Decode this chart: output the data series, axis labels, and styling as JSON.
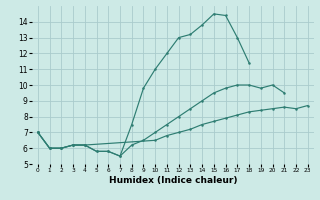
{
  "xlabel": "Humidex (Indice chaleur)",
  "bg_color": "#cdeae6",
  "grid_color": "#aacccc",
  "line_color": "#2e7d72",
  "xlim": [
    -0.5,
    23.5
  ],
  "ylim": [
    5,
    15
  ],
  "yticks": [
    5,
    6,
    7,
    8,
    9,
    10,
    11,
    12,
    13,
    14
  ],
  "xticks": [
    0,
    1,
    2,
    3,
    4,
    5,
    6,
    7,
    8,
    9,
    10,
    11,
    12,
    13,
    14,
    15,
    16,
    17,
    18,
    19,
    20,
    21,
    22,
    23
  ],
  "series": [
    {
      "x": [
        0,
        1,
        2,
        3,
        4,
        5,
        6,
        7,
        8,
        9,
        10,
        11,
        12,
        13,
        14,
        15,
        16,
        17,
        18
      ],
      "y": [
        7,
        6,
        6,
        6.2,
        6.2,
        5.8,
        5.8,
        5.5,
        7.5,
        9.8,
        11.0,
        12.0,
        13.0,
        13.2,
        13.8,
        14.5,
        14.4,
        13.0,
        11.4
      ]
    },
    {
      "x": [
        0,
        1,
        2,
        3,
        4,
        5,
        6,
        7,
        8,
        9,
        10,
        11,
        12,
        13,
        14,
        15,
        16,
        17,
        18,
        19,
        20,
        21
      ],
      "y": [
        7,
        6,
        6,
        6.2,
        6.2,
        5.8,
        5.8,
        5.5,
        6.2,
        6.5,
        7.0,
        7.5,
        8.0,
        8.5,
        9.0,
        9.5,
        9.8,
        10.0,
        10.0,
        9.8,
        10.0,
        9.5
      ]
    },
    {
      "x": [
        0,
        1,
        2,
        3,
        4,
        10,
        11,
        12,
        13,
        14,
        15,
        16,
        17,
        18,
        19,
        20,
        21,
        22,
        23
      ],
      "y": [
        7.0,
        6.0,
        6.0,
        6.2,
        6.2,
        6.5,
        6.8,
        7.0,
        7.2,
        7.5,
        7.7,
        7.9,
        8.1,
        8.3,
        8.4,
        8.5,
        8.6,
        8.5,
        8.7
      ]
    }
  ]
}
